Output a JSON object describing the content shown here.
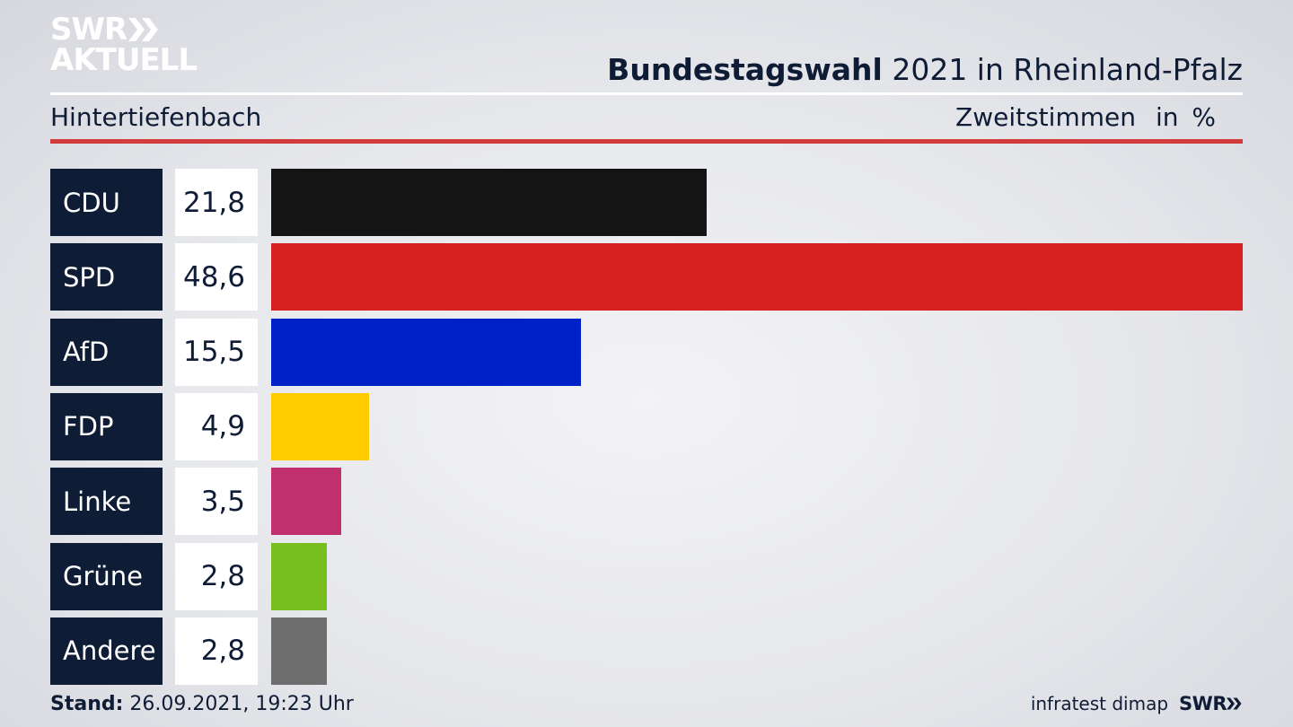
{
  "brand": {
    "line1": "SWR",
    "line2": "AKTUELL",
    "logo_icon": "double-chevron-icon"
  },
  "header": {
    "title_bold": "Bundestagswahl",
    "title_rest": "2021 in Rheinland-Pfalz",
    "subtitle": "Hintertiefenbach",
    "unit_label": "Zweitstimmen",
    "unit_suffix": "in %"
  },
  "colors": {
    "navy": "#0f1c36",
    "accent_red_rule": "#d23c3c"
  },
  "chart_data": {
    "type": "bar",
    "orientation": "horizontal",
    "categories": [
      "CDU",
      "SPD",
      "AfD",
      "FDP",
      "Linke",
      "Grüne",
      "Andere"
    ],
    "values": [
      21.8,
      48.6,
      15.5,
      4.9,
      3.5,
      2.8,
      2.8
    ],
    "value_labels": [
      "21,8",
      "48,6",
      "15,5",
      "4,9",
      "3,5",
      "2,8",
      "2,8"
    ],
    "colors": [
      "#141414",
      "#d72020",
      "#0020c8",
      "#ffcc00",
      "#c0306e",
      "#78be1e",
      "#6e6e6e"
    ],
    "xlim": [
      0,
      48.6
    ]
  },
  "footer": {
    "stand_label": "Stand:",
    "stand_value": "26.09.2021, 19:23 Uhr",
    "source": "infratest dimap",
    "source_brand": "SWR"
  }
}
